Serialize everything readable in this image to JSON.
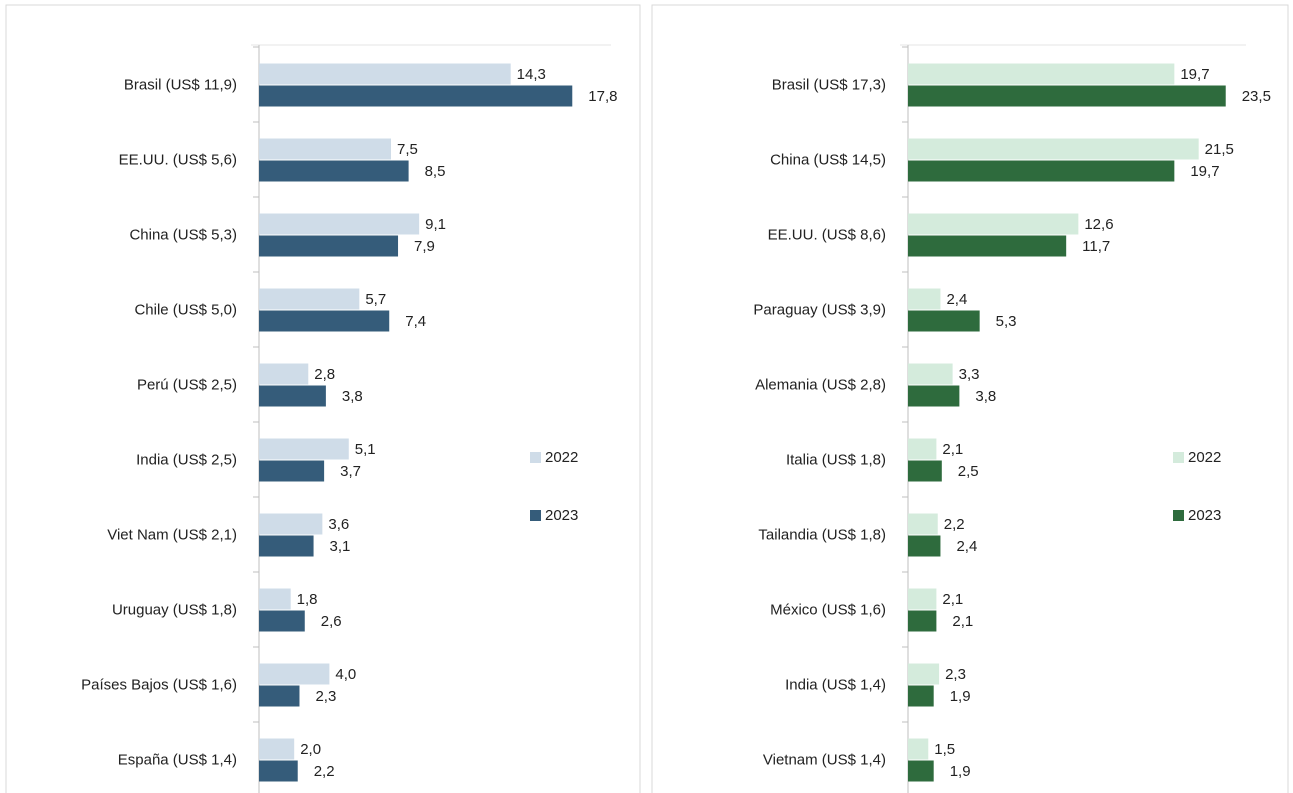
{
  "chart_data": [
    {
      "type": "bar",
      "orientation": "horizontal",
      "categories": [
        "Brasil (US$ 11,9)",
        "EE.UU. (US$ 5,6)",
        "China (US$ 5,3)",
        "Chile (US$ 5,0)",
        "Perú (US$ 2,5)",
        "India (US$ 2,5)",
        "Viet Nam (US$ 2,1)",
        "Uruguay (US$ 1,8)",
        "Países Bajos (US$ 1,6)",
        "España (US$ 1,4)"
      ],
      "series": [
        {
          "name": "2022",
          "color": "#cfdce8",
          "values": [
            14.3,
            7.5,
            9.1,
            5.7,
            2.8,
            5.1,
            3.6,
            1.8,
            4.0,
            2.0
          ],
          "value_labels": [
            "14,3",
            "7,5",
            "9,1",
            "5,7",
            "2,8",
            "5,1",
            "3,6",
            "1,8",
            "4,0",
            "2,0"
          ]
        },
        {
          "name": "2023",
          "color": "#355c7a",
          "values": [
            17.8,
            8.5,
            7.9,
            7.4,
            3.8,
            3.7,
            3.1,
            2.6,
            2.3,
            2.2
          ],
          "value_labels": [
            "17,8",
            "8,5",
            "7,9",
            "7,4",
            "3,8",
            "3,7",
            "3,1",
            "2,6",
            "2,3",
            "2,2"
          ]
        }
      ],
      "xlim": [
        0,
        20
      ],
      "legend": "right"
    },
    {
      "type": "bar",
      "orientation": "horizontal",
      "categories": [
        "Brasil (US$ 17,3)",
        "China (US$ 14,5)",
        "EE.UU. (US$ 8,6)",
        "Paraguay (US$ 3,9)",
        "Alemania (US$ 2,8)",
        "Italia (US$ 1,8)",
        "Tailandia (US$ 1,8)",
        "México (US$ 1,6)",
        "India (US$ 1,4)",
        "Vietnam (US$ 1,4)"
      ],
      "series": [
        {
          "name": "2022",
          "color": "#d4ebdc",
          "values": [
            19.7,
            21.5,
            12.6,
            2.4,
            3.3,
            2.1,
            2.2,
            2.1,
            2.3,
            1.5
          ],
          "value_labels": [
            "19,7",
            "21,5",
            "12,6",
            "2,4",
            "3,3",
            "2,1",
            "2,2",
            "2,1",
            "2,3",
            "1,5"
          ]
        },
        {
          "name": "2023",
          "color": "#2e6b3d",
          "values": [
            23.5,
            19.7,
            11.7,
            5.3,
            3.8,
            2.5,
            2.4,
            2.1,
            1.9,
            1.9
          ],
          "value_labels": [
            "23,5",
            "19,7",
            "11,7",
            "5,3",
            "3,8",
            "2,5",
            "2,4",
            "2,1",
            "1,9",
            "1,9"
          ]
        }
      ],
      "xlim": [
        0,
        25
      ],
      "legend": "right"
    }
  ]
}
